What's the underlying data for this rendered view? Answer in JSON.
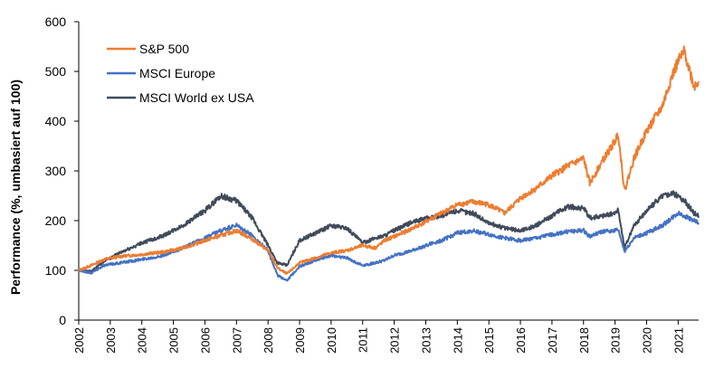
{
  "chart_data": {
    "type": "line",
    "title": "",
    "xlabel": "",
    "ylabel": "Performance (%, umbasiert auf 100)",
    "ylim": [
      0,
      600
    ],
    "y_ticks": [
      0,
      100,
      200,
      300,
      400,
      500,
      600
    ],
    "xlim": [
      2002.0,
      2021.65
    ],
    "x_ticks": [
      "2002",
      "2003",
      "2004",
      "2005",
      "2006",
      "2007",
      "2008",
      "2009",
      "2010",
      "2011",
      "2012",
      "2013",
      "2014",
      "2015",
      "2016",
      "2017",
      "2018",
      "2019",
      "2020",
      "2021"
    ],
    "legend_position": "top-left",
    "grid": false,
    "series": [
      {
        "name": "S&P 500",
        "color": "#ED7D31",
        "x": [
          2002.0,
          2002.4,
          2002.8,
          2003.3,
          2004.0,
          2004.7,
          2005.3,
          2006.0,
          2006.5,
          2007.0,
          2007.5,
          2008.0,
          2008.3,
          2008.6,
          2009.0,
          2009.5,
          2010.0,
          2010.5,
          2011.0,
          2011.4,
          2011.7,
          2012.0,
          2012.5,
          2013.0,
          2013.5,
          2014.0,
          2014.5,
          2015.0,
          2015.5,
          2016.0,
          2016.5,
          2017.0,
          2017.5,
          2018.0,
          2018.2,
          2018.6,
          2019.0,
          2019.1,
          2019.3,
          2019.6,
          2020.0,
          2020.5,
          2020.8,
          2021.0,
          2021.2,
          2021.5,
          2021.65
        ],
        "values": [
          100,
          110,
          122,
          128,
          132,
          137,
          145,
          160,
          170,
          180,
          163,
          140,
          105,
          93,
          115,
          125,
          135,
          140,
          150,
          145,
          160,
          168,
          182,
          198,
          215,
          232,
          238,
          232,
          215,
          245,
          265,
          290,
          310,
          325,
          275,
          320,
          360,
          375,
          260,
          325,
          380,
          430,
          490,
          520,
          540,
          470,
          480
        ]
      },
      {
        "name": "MSCI Europe",
        "color": "#4472C4",
        "x": [
          2002.0,
          2002.4,
          2002.8,
          2003.3,
          2004.0,
          2004.7,
          2005.3,
          2006.0,
          2006.5,
          2007.0,
          2007.5,
          2008.0,
          2008.3,
          2008.6,
          2009.0,
          2009.5,
          2010.0,
          2010.5,
          2011.0,
          2011.4,
          2011.7,
          2012.0,
          2012.5,
          2013.0,
          2013.5,
          2014.0,
          2014.5,
          2015.0,
          2015.5,
          2016.0,
          2016.5,
          2017.0,
          2017.5,
          2018.0,
          2018.2,
          2018.6,
          2019.0,
          2019.1,
          2019.3,
          2019.6,
          2020.0,
          2020.5,
          2020.8,
          2021.0,
          2021.2,
          2021.5,
          2021.65
        ],
        "values": [
          100,
          95,
          110,
          115,
          122,
          130,
          145,
          165,
          180,
          190,
          170,
          140,
          90,
          80,
          108,
          120,
          130,
          125,
          110,
          115,
          120,
          130,
          138,
          150,
          160,
          175,
          180,
          172,
          165,
          160,
          165,
          172,
          178,
          180,
          168,
          178,
          180,
          182,
          138,
          165,
          175,
          190,
          205,
          215,
          210,
          200,
          195
        ]
      },
      {
        "name": "MSCI World ex USA",
        "color": "#404A5A",
        "x": [
          2002.0,
          2002.4,
          2002.8,
          2003.3,
          2004.0,
          2004.7,
          2005.3,
          2006.0,
          2006.5,
          2007.0,
          2007.5,
          2008.0,
          2008.3,
          2008.6,
          2009.0,
          2009.5,
          2010.0,
          2010.5,
          2011.0,
          2011.4,
          2011.7,
          2012.0,
          2012.5,
          2013.0,
          2013.5,
          2014.0,
          2014.5,
          2015.0,
          2015.5,
          2016.0,
          2016.5,
          2017.0,
          2017.5,
          2018.0,
          2018.2,
          2018.6,
          2019.0,
          2019.1,
          2019.3,
          2019.6,
          2020.0,
          2020.5,
          2020.8,
          2021.0,
          2021.2,
          2021.5,
          2021.65
        ],
        "values": [
          100,
          98,
          118,
          135,
          155,
          170,
          190,
          220,
          250,
          240,
          205,
          150,
          115,
          110,
          160,
          175,
          190,
          185,
          155,
          165,
          170,
          180,
          195,
          205,
          210,
          220,
          215,
          195,
          185,
          180,
          190,
          210,
          228,
          225,
          205,
          210,
          215,
          222,
          145,
          190,
          220,
          250,
          255,
          250,
          240,
          215,
          210
        ]
      }
    ]
  }
}
